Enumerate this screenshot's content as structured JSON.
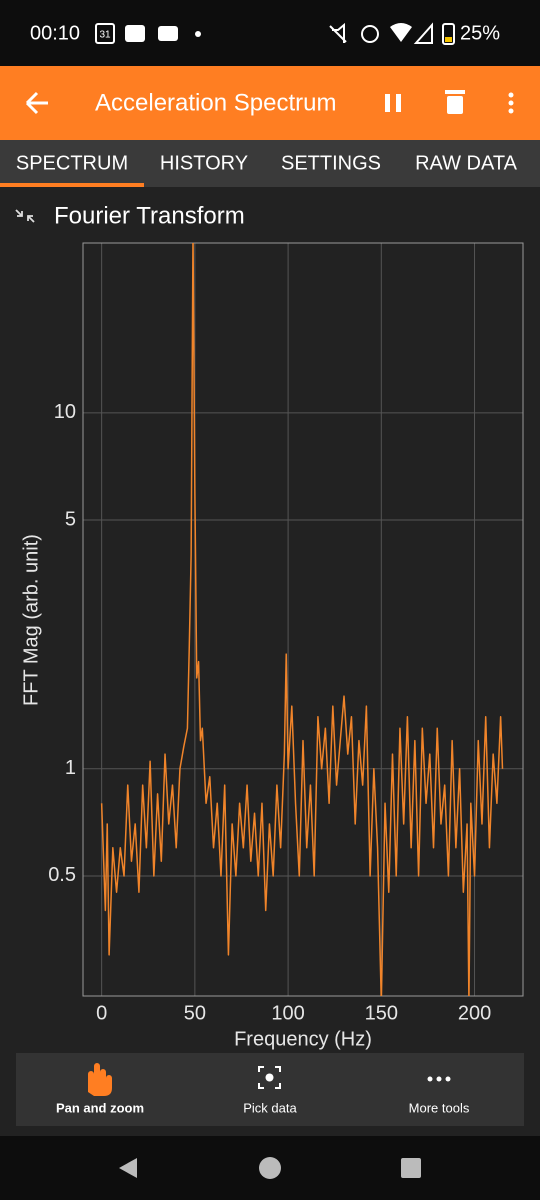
{
  "status_bar": {
    "time": "00:10",
    "calendar_day": "31",
    "battery": "25%"
  },
  "app_bar": {
    "title": "Acceleration Spectrum"
  },
  "tabs": [
    "SPECTRUM",
    "HISTORY",
    "SETTINGS",
    "RAW DATA"
  ],
  "chart_data": {
    "type": "line",
    "title": "Fourier Transform",
    "x_label": "Frequency (Hz)",
    "y_label": "FFT Mag (arb. unit)",
    "color": "#f0842a",
    "log_y": true,
    "grid": true,
    "xlim": [
      -10,
      226
    ],
    "ylim": [
      0.23,
      30
    ],
    "xticks": [
      0,
      50,
      100,
      150,
      200
    ],
    "yticks": [
      0.5,
      1,
      5,
      10
    ],
    "x": [
      0,
      2,
      3,
      4,
      6,
      8,
      10,
      12,
      14,
      16,
      18,
      20,
      22,
      24,
      26,
      28,
      30,
      32,
      34,
      36,
      38,
      40,
      42,
      44,
      46,
      47,
      48,
      49,
      50,
      51,
      52,
      53,
      54,
      56,
      58,
      60,
      62,
      64,
      66,
      68,
      70,
      72,
      74,
      76,
      78,
      80,
      82,
      84,
      86,
      88,
      90,
      92,
      94,
      96,
      98,
      99,
      100,
      102,
      104,
      106,
      108,
      110,
      112,
      114,
      116,
      118,
      120,
      122,
      124,
      126,
      128,
      130,
      132,
      134,
      136,
      138,
      140,
      142,
      144,
      146,
      148,
      150,
      152,
      154,
      156,
      158,
      160,
      162,
      164,
      166,
      168,
      170,
      172,
      174,
      176,
      178,
      180,
      182,
      184,
      186,
      188,
      190,
      192,
      194,
      196,
      197,
      198,
      200,
      202,
      204,
      206,
      208,
      210,
      212,
      214,
      215
    ],
    "values": [
      0.8,
      0.4,
      0.7,
      0.3,
      0.6,
      0.45,
      0.6,
      0.5,
      0.9,
      0.55,
      0.7,
      0.45,
      0.9,
      0.6,
      1.05,
      0.5,
      0.85,
      0.55,
      1.1,
      0.7,
      0.9,
      0.6,
      1.0,
      1.15,
      1.3,
      2.2,
      4,
      32,
      6,
      1.8,
      2.0,
      1.2,
      1.3,
      0.8,
      0.95,
      0.6,
      0.8,
      0.5,
      0.9,
      0.3,
      0.7,
      0.5,
      0.8,
      0.6,
      0.9,
      0.55,
      0.75,
      0.5,
      0.8,
      0.4,
      0.7,
      0.5,
      0.9,
      0.6,
      1.1,
      2.1,
      1.0,
      1.5,
      0.8,
      0.5,
      1.2,
      0.6,
      0.9,
      0.5,
      1.4,
      1.0,
      1.3,
      0.8,
      1.5,
      0.9,
      1.2,
      1.6,
      1.1,
      1.4,
      0.7,
      1.2,
      0.9,
      1.5,
      0.5,
      1.0,
      0.6,
      0.22,
      0.8,
      0.45,
      1.1,
      0.5,
      1.3,
      0.7,
      1.4,
      0.6,
      1.2,
      0.5,
      1.3,
      0.8,
      1.1,
      0.6,
      1.3,
      0.7,
      0.9,
      0.5,
      1.2,
      0.6,
      1.0,
      0.45,
      0.7,
      0.22,
      0.8,
      0.5,
      1.2,
      0.7,
      1.4,
      0.6,
      1.1,
      0.8,
      1.4,
      1.0
    ]
  },
  "toolbar": [
    "Pan and zoom",
    "Pick data",
    "More tools"
  ]
}
